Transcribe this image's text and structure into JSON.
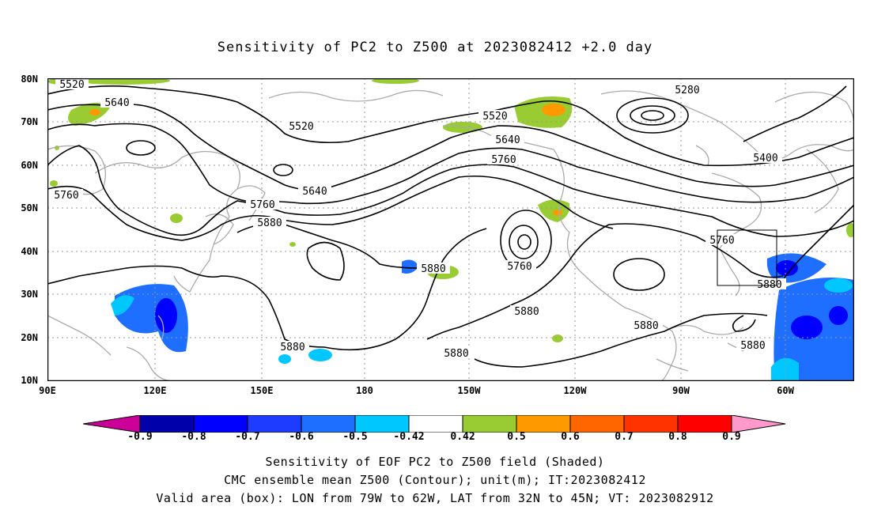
{
  "title": "Sensitivity of PC2 to Z500 at 2023082412 +2.0 day",
  "lat_labels": [
    "80N",
    "70N",
    "60N",
    "50N",
    "40N",
    "30N",
    "20N",
    "10N"
  ],
  "lon_labels": [
    "90E",
    "120E",
    "150E",
    "180",
    "150W",
    "120W",
    "90W",
    "60W"
  ],
  "contour_labels": [
    "5520",
    "5640",
    "5520",
    "5280",
    "5400",
    "5520",
    "5640",
    "5760",
    "5640",
    "5760",
    "5880",
    "5760",
    "5760",
    "5880",
    "5880",
    "5760",
    "5880",
    "5880",
    "5880",
    "5880",
    "5880"
  ],
  "colorbar": {
    "tick_labels": [
      "-0.9",
      "-0.8",
      "-0.7",
      "-0.6",
      "-0.5",
      "-0.42",
      "0.42",
      "0.5",
      "0.6",
      "0.7",
      "0.8",
      "0.9"
    ],
    "colors": [
      "#cc0099",
      "#0000aa",
      "#0000ff",
      "#1e3cff",
      "#1e6eff",
      "#00c8ff",
      "#ffffff",
      "#99cc33",
      "#ff9900",
      "#ff6600",
      "#ff3300",
      "#ff0000",
      "#ff99cc"
    ]
  },
  "valid_box": {
    "lon_from": "79W",
    "lon_to": "62W",
    "lat_from": "32N",
    "lat_to": "45N"
  },
  "footer": {
    "line1": "Sensitivity of EOF PC2 to Z500 field (Shaded)",
    "line2": "CMC ensemble mean Z500 (Contour); unit(m); IT:2023082412",
    "line3": "Valid area (box): LON from 79W to 62W, LAT from 32N to 45N; VT: 2023082912"
  },
  "colors": {
    "contour": "#000000",
    "coast": "#aaaaaa",
    "grid": "#999999",
    "frame": "#000000"
  }
}
